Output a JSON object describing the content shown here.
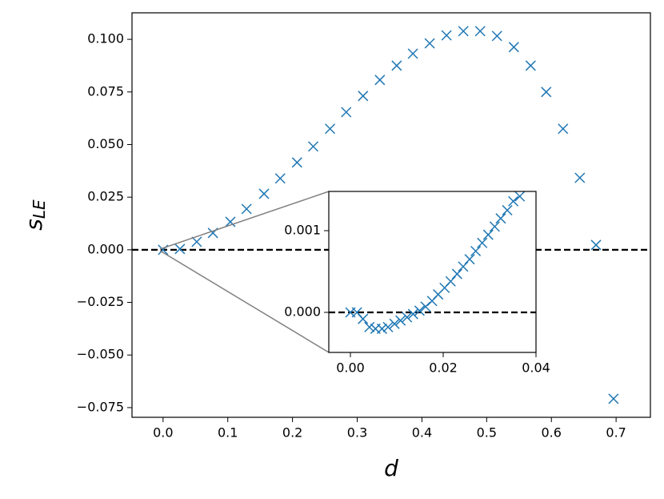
{
  "chart_data": [
    {
      "type": "scatter",
      "xlabel": "d",
      "ylabel": "s",
      "ylabel_subscript": "LE",
      "color": "#1f77b4",
      "marker": "x",
      "hline": 0,
      "xlim": [
        -0.048,
        0.753
      ],
      "ylim": [
        -0.0796,
        0.1126
      ],
      "xticks": [
        {
          "value": 0.0,
          "label": "0.0"
        },
        {
          "value": 0.1,
          "label": "0.1"
        },
        {
          "value": 0.2,
          "label": "0.2"
        },
        {
          "value": 0.3,
          "label": "0.3"
        },
        {
          "value": 0.4,
          "label": "0.4"
        },
        {
          "value": 0.5,
          "label": "0.5"
        },
        {
          "value": 0.6,
          "label": "0.6"
        },
        {
          "value": 0.7,
          "label": "0.7"
        }
      ],
      "yticks": [
        {
          "value": -0.075,
          "label": "−0.075"
        },
        {
          "value": -0.05,
          "label": "−0.050"
        },
        {
          "value": -0.025,
          "label": "−0.025"
        },
        {
          "value": 0,
          "label": "0.000"
        },
        {
          "value": 0.025,
          "label": "0.025"
        },
        {
          "value": 0.05,
          "label": "0.050"
        },
        {
          "value": 0.075,
          "label": "0.075"
        },
        {
          "value": 0.1,
          "label": "0.100"
        }
      ],
      "x": [
        0.0,
        0.026,
        0.052,
        0.077,
        0.104,
        0.129,
        0.156,
        0.181,
        0.207,
        0.232,
        0.258,
        0.283,
        0.309,
        0.335,
        0.361,
        0.386,
        0.412,
        0.438,
        0.464,
        0.49,
        0.516,
        0.542,
        0.568,
        0.592,
        0.618,
        0.644,
        0.669,
        0.696
      ],
      "y": [
        0.0,
        0.0004,
        0.0038,
        0.008,
        0.0133,
        0.0194,
        0.0266,
        0.0339,
        0.0415,
        0.0491,
        0.0575,
        0.0654,
        0.0731,
        0.0807,
        0.0875,
        0.0932,
        0.0981,
        0.1019,
        0.1039,
        0.1039,
        0.1016,
        0.0963,
        0.0875,
        0.075,
        0.0575,
        0.0342,
        0.0023,
        -0.0708
      ]
    },
    {
      "type": "scatter",
      "color": "#1f77b4",
      "marker": "x",
      "hline": 0,
      "xlim": [
        -0.00466,
        0.04
      ],
      "ylim": [
        -0.00049,
        0.00148
      ],
      "xticks": [
        {
          "value": 0.0,
          "label": "0.00"
        },
        {
          "value": 0.02,
          "label": "0.02"
        },
        {
          "value": 0.04,
          "label": "0.04"
        }
      ],
      "yticks": [
        {
          "value": 0,
          "label": "0.000"
        },
        {
          "value": 0.001,
          "label": "0.001"
        }
      ],
      "x": [
        0.0,
        0.0014,
        0.0027,
        0.0041,
        0.0054,
        0.0068,
        0.0081,
        0.0095,
        0.0108,
        0.0122,
        0.0135,
        0.0149,
        0.0162,
        0.0176,
        0.0189,
        0.0203,
        0.0216,
        0.023,
        0.0243,
        0.0257,
        0.027,
        0.0284,
        0.0297,
        0.0311,
        0.0324,
        0.0338,
        0.0351,
        0.0365
      ],
      "y": [
        0.0,
        0.0,
        -8e-05,
        -0.00018,
        -0.0002,
        -0.0002,
        -0.00018,
        -0.00014,
        -0.0001,
        -6e-05,
        -2e-05,
        2e-05,
        7e-05,
        0.00014,
        0.00022,
        0.0003,
        0.00038,
        0.00047,
        0.00056,
        0.00065,
        0.00075,
        0.00085,
        0.00095,
        0.00105,
        0.00115,
        0.00125,
        0.00136,
        0.00142
      ]
    }
  ]
}
